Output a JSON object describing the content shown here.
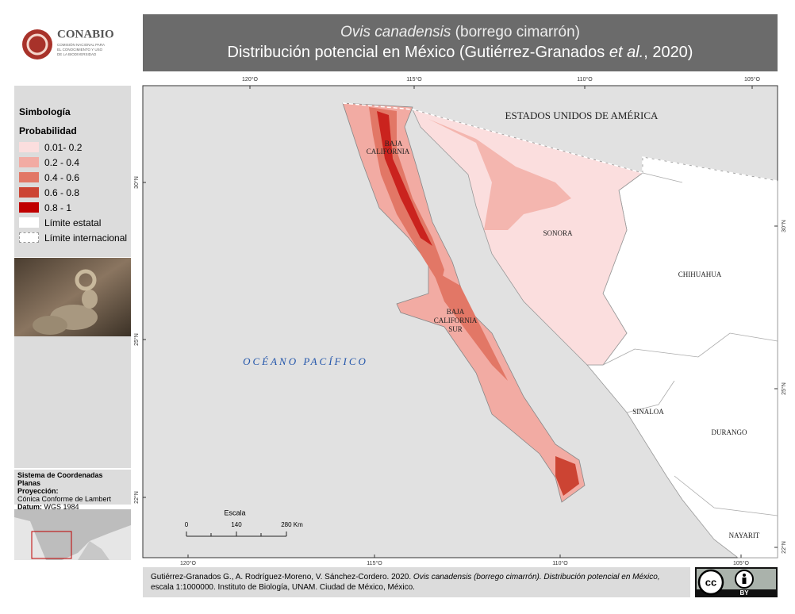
{
  "header": {
    "logo_name": "CONABIO",
    "logo_tagline": [
      "COMISIÓN NACIONAL PARA",
      "EL CONOCIMIENTO Y USO",
      "DE LA BIODIVERSIDAD"
    ],
    "title_species": "Ovis canadensis",
    "title_common": "(borrego cimarrón)",
    "subtitle_before": "Distribución potencial en México (Gutiérrez-Granados",
    "subtitle_italic": "et al.",
    "subtitle_after": ", 2020)"
  },
  "legend": {
    "title": "Simbología",
    "subtitle": "Probabilidad",
    "items": [
      {
        "label": "0.01- 0.2",
        "color": "#fbdede"
      },
      {
        "label": "0.2 - 0.4",
        "color": "#f2aba3"
      },
      {
        "label": "0.4 - 0.6",
        "color": "#e27766"
      },
      {
        "label": "0.6 - 0.8",
        "color": "#cc4433"
      },
      {
        "label": "0.8 - 1",
        "color": "#c00000"
      },
      {
        "label": "Límite estatal",
        "color": "#ffffff"
      },
      {
        "label": "Límite internacional",
        "color": "#ffffff",
        "dashed": true
      }
    ]
  },
  "projection": {
    "system": "Sistema de Coordenadas Planas",
    "projection_label": "Proyección:",
    "projection": "Cónica Conforme de Lambert",
    "datum_label": "Datum:",
    "datum": "WGS 1984"
  },
  "map": {
    "usa": "ESTADOS UNIDOS DE AMÉRICA",
    "baja_california": [
      "BAJA",
      "CALIFORNIA"
    ],
    "sonora": "SONORA",
    "chihuahua": "CHIHUAHUA",
    "baja_california_sur": [
      "BAJA",
      "CALIFORNIA",
      "SUR"
    ],
    "sinaloa": "SINALOA",
    "durango": "DURANGO",
    "nayarit": "NAYARIT",
    "ocean": "OCÉANO PACÍFICO"
  },
  "graticule": {
    "top": [
      "120°O",
      "115°O",
      "110°O",
      "105°O"
    ],
    "bottom": [
      "120°O",
      "115°O",
      "110°O",
      "105°O"
    ],
    "left": [
      "30°N",
      "25°N",
      "22°N"
    ],
    "right": [
      "30°N",
      "25°N",
      "22°N"
    ]
  },
  "scale": {
    "title": "Escala",
    "ticks": [
      "0",
      "140",
      "280 Km"
    ]
  },
  "citation": {
    "authors": "Gutiérrez-Granados G., A. Rodríguez-Moreno, V. Sánchez-Cordero. 2020.",
    "work": "Ovis canadensis (borrego cimarrón). Distribución potencial en México,",
    "rest": "escala 1:1000000. Instituto de Biología, UNAM. Ciudad de México, México."
  },
  "license": {
    "mark": "cc",
    "by": "BY"
  }
}
